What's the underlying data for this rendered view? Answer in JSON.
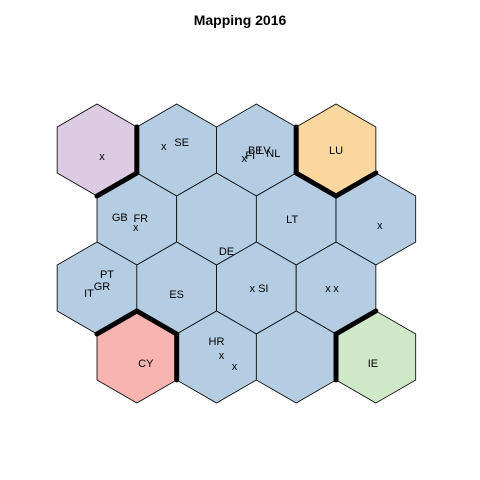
{
  "chart_data": {
    "type": "hexbin-som-map",
    "title": "Mapping 2016",
    "grid": {
      "columns": 4,
      "rows": 4,
      "topology": "hexagonal"
    },
    "cells": [
      {
        "row": 0,
        "col": 0,
        "color": "#dccbe3",
        "labels": [
          "x"
        ]
      },
      {
        "row": 0,
        "col": 1,
        "color": "#b5cde2",
        "labels": [
          "x",
          "SE"
        ]
      },
      {
        "row": 0,
        "col": 2,
        "color": "#b5cde2",
        "labels": [
          "x",
          "FI",
          "BE",
          "LV",
          "NL"
        ]
      },
      {
        "row": 0,
        "col": 3,
        "color": "#fbd7a0",
        "labels": [
          "LU"
        ]
      },
      {
        "row": 1,
        "col": 0,
        "color": "#b5cde2",
        "labels": [
          "GB",
          "FR",
          "x"
        ]
      },
      {
        "row": 1,
        "col": 1,
        "color": "#b5cde2",
        "labels": [
          "DE"
        ]
      },
      {
        "row": 1,
        "col": 2,
        "color": "#b5cde2",
        "labels": [
          "LT"
        ]
      },
      {
        "row": 1,
        "col": 3,
        "color": "#b5cde2",
        "labels": [
          "x"
        ]
      },
      {
        "row": 2,
        "col": 0,
        "color": "#b5cde2",
        "labels": [
          "PT",
          "GR",
          "IT"
        ]
      },
      {
        "row": 2,
        "col": 1,
        "color": "#b5cde2",
        "labels": [
          "ES"
        ]
      },
      {
        "row": 2,
        "col": 2,
        "color": "#b5cde2",
        "labels": [
          "x",
          "SI"
        ]
      },
      {
        "row": 2,
        "col": 3,
        "color": "#b5cde2",
        "labels": [
          "x",
          "x"
        ]
      },
      {
        "row": 3,
        "col": 0,
        "color": "#f8b4b0",
        "labels": [
          "CY"
        ]
      },
      {
        "row": 3,
        "col": 1,
        "color": "#b5cde2",
        "labels": [
          "HR",
          "x",
          "x"
        ]
      },
      {
        "row": 3,
        "col": 2,
        "color": "#b5cde2",
        "labels": []
      },
      {
        "row": 3,
        "col": 3,
        "color": "#cfe8c8",
        "labels": [
          "IE"
        ]
      }
    ],
    "cluster_boundaries": [
      {
        "between": [
          "r0c0",
          "r0c1"
        ]
      },
      {
        "between": [
          "r0c0",
          "r1c0"
        ]
      },
      {
        "between": [
          "r0c2",
          "r0c3"
        ]
      },
      {
        "between": [
          "r0c3",
          "r1c2"
        ]
      },
      {
        "between": [
          "r0c3",
          "r1c3"
        ]
      },
      {
        "between": [
          "r2c0",
          "r3c0"
        ]
      },
      {
        "between": [
          "r2c1",
          "r3c0"
        ]
      },
      {
        "between": [
          "r3c0",
          "r3c1"
        ]
      },
      {
        "between": [
          "r2c3",
          "r3c3"
        ]
      },
      {
        "between": [
          "r3c2",
          "r3c3"
        ]
      }
    ],
    "colors": {
      "cluster_purple": "#dccbe3",
      "cluster_blue": "#b5cde2",
      "cluster_orange": "#fbd7a0",
      "cluster_red": "#f8b4b0",
      "cluster_green": "#cfe8c8",
      "boundary": "#000000"
    }
  }
}
